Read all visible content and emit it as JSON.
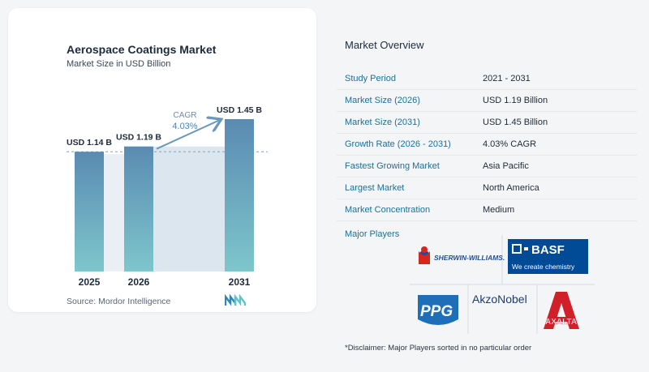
{
  "chart": {
    "title": "Aerospace Coatings Market",
    "subtitle": "Market Size in USD Billion",
    "source": "Source: Mordor Intelligence",
    "cagr_label": "CAGR",
    "cagr_value": "4.03%"
  },
  "chart_data": {
    "type": "bar",
    "title": "Aerospace Coatings Market",
    "subtitle": "Market Size in USD Billion",
    "categories": [
      "2025",
      "2026",
      "2031"
    ],
    "values": [
      1.14,
      1.19,
      1.45
    ],
    "data_labels": [
      "USD 1.14 B",
      "USD 1.19 B",
      "USD 1.45 B"
    ],
    "colors": {
      "bar_top": "#5b8db3",
      "bar_bottom": "#7fc4cc",
      "shade": "#dbe6ef",
      "arrow": "#6a97bb"
    }
  },
  "overview": {
    "title": "Market Overview",
    "rows": [
      {
        "label": "Study Period",
        "value": "2021 - 2031"
      },
      {
        "label": "Market Size (2026)",
        "value": "USD 1.19 Billion"
      },
      {
        "label": "Market Size (2031)",
        "value": "USD 1.45 Billion"
      },
      {
        "label": "Growth Rate (2026 - 2031)",
        "value": "4.03% CAGR"
      },
      {
        "label": "Fastest Growing Market",
        "value": "Asia Pacific"
      },
      {
        "label": "Largest Market",
        "value": "North America"
      },
      {
        "label": "Market Concentration",
        "value": "Medium"
      }
    ],
    "players_title": "Major Players",
    "players": {
      "sherwin": "SHERWIN-WILLIAMS.",
      "basf": "BASF",
      "basf_tag": "We create chemistry",
      "ppg": "PPG",
      "akzo": "AkzoNobel",
      "axalta": "AXALTA"
    },
    "disclaimer": "*Disclaimer: Major Players sorted in no particular order"
  }
}
